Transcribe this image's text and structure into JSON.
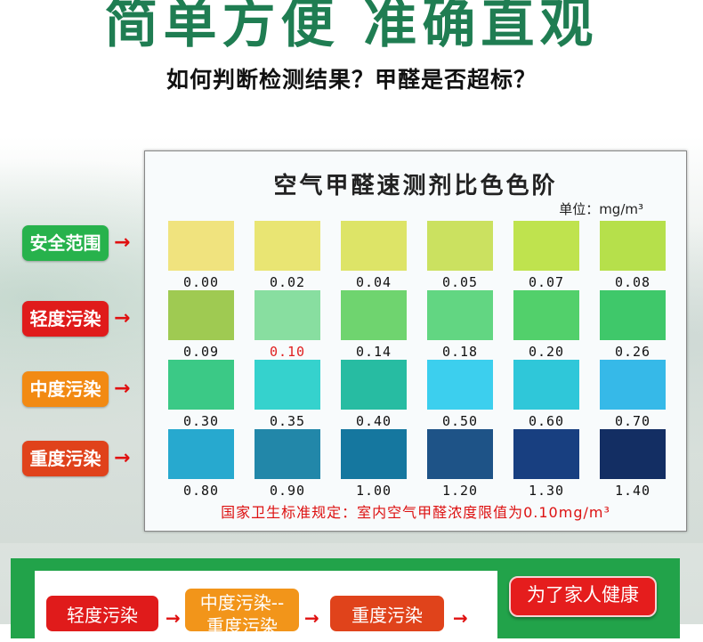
{
  "header": {
    "headline": "简单方便 准确直观",
    "subheading": "如何判断检测结果？甲醛是否超标？"
  },
  "card": {
    "title": "空气甲醛速测剂比色色阶",
    "unit": "单位：mg/m³",
    "rows": [
      [
        {
          "value": "0.00",
          "color": "#f0e37e"
        },
        {
          "value": "0.02",
          "color": "#e9e573"
        },
        {
          "value": "0.04",
          "color": "#dde467"
        },
        {
          "value": "0.05",
          "color": "#cbe160"
        },
        {
          "value": "0.07",
          "color": "#bfe34e"
        },
        {
          "value": "0.08",
          "color": "#b6e04b"
        }
      ],
      [
        {
          "value": "0.09",
          "color": "#9fca52"
        },
        {
          "value": "0.10",
          "color": "#88dea0",
          "highlight": "#e02020"
        },
        {
          "value": "0.14",
          "color": "#6fd46f"
        },
        {
          "value": "0.18",
          "color": "#62d682"
        },
        {
          "value": "0.20",
          "color": "#52d06b"
        },
        {
          "value": "0.26",
          "color": "#3fc86a"
        }
      ],
      [
        {
          "value": "0.30",
          "color": "#3bc986"
        },
        {
          "value": "0.35",
          "color": "#35d2cd"
        },
        {
          "value": "0.40",
          "color": "#27bca2"
        },
        {
          "value": "0.50",
          "color": "#3ccfee"
        },
        {
          "value": "0.60",
          "color": "#2fc7d9"
        },
        {
          "value": "0.70",
          "color": "#36b9e8"
        }
      ],
      [
        {
          "value": "0.80",
          "color": "#27a9cf"
        },
        {
          "value": "0.90",
          "color": "#2287a9"
        },
        {
          "value": "1.00",
          "color": "#15779f"
        },
        {
          "value": "1.20",
          "color": "#1e5387"
        },
        {
          "value": "1.30",
          "color": "#183f80"
        },
        {
          "value": "1.40",
          "color": "#132e63"
        }
      ]
    ],
    "note": "国家卫生标准规定：室内空气甲醛浓度限值为0.10mg/m³"
  },
  "labels": [
    {
      "text": "安全范围",
      "color": "#27b24c"
    },
    {
      "text": "轻度污染",
      "color": "#e01b1b"
    },
    {
      "text": "中度污染",
      "color": "#f28a13"
    },
    {
      "text": "重度污染",
      "color": "#e0421b"
    }
  ],
  "arrow_glyph": "→",
  "bottom": {
    "pills": [
      {
        "text": "轻度污染",
        "color": "#e01b1b"
      },
      {
        "text": "中度污染--",
        "text2": "重度污染",
        "color": "#f2951a"
      },
      {
        "text": "重度污染",
        "color": "#e0431b"
      }
    ],
    "family_button": "为了家人健康"
  }
}
